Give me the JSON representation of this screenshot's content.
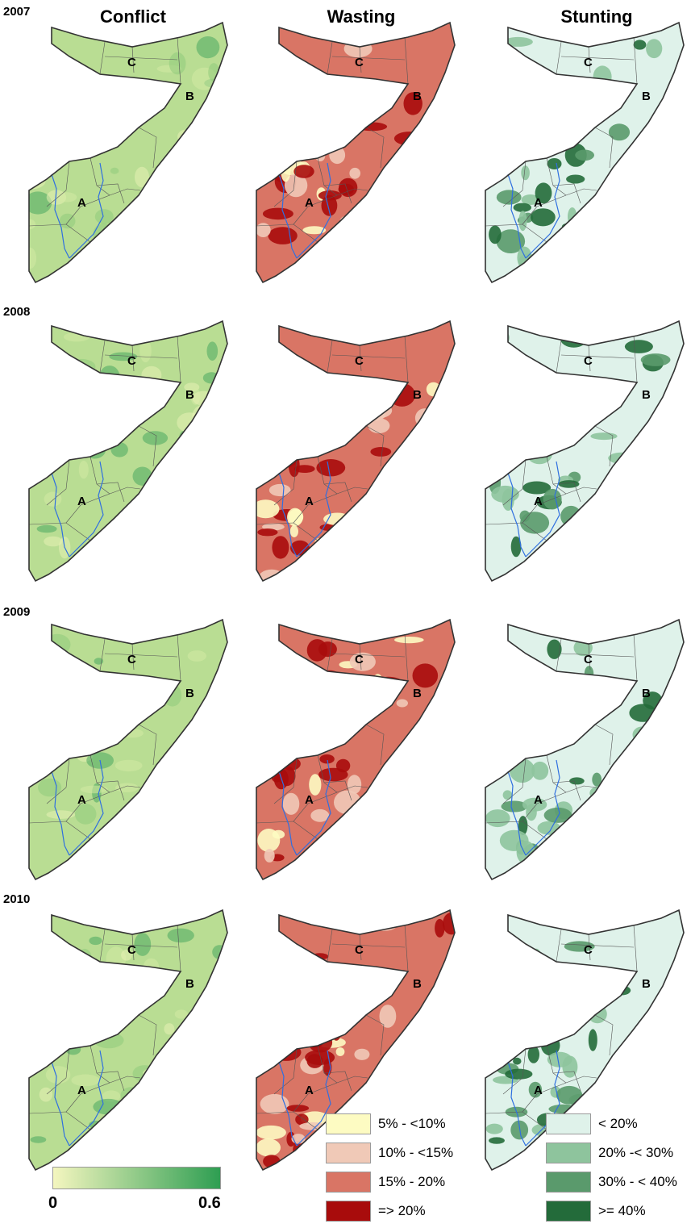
{
  "columns": [
    "Conflict",
    "Wasting",
    "Stunting"
  ],
  "years": [
    "2007",
    "2008",
    "2009",
    "2010"
  ],
  "region_labels": [
    "A",
    "B",
    "C"
  ],
  "colors": {
    "conflict_low": "#f4f6bf",
    "conflict_high": "#2e9e52",
    "wasting": [
      "#fdfbc2",
      "#f0c9b7",
      "#d97565",
      "#a80c0c"
    ],
    "stunting": [
      "#dff2ea",
      "#8ec49d",
      "#5a9a6c",
      "#236b3a"
    ],
    "river": "#2f6fe0",
    "border": "#333333"
  },
  "conflict_scale": {
    "min_label": "0",
    "max_label": "0.6",
    "min": 0,
    "max": 0.6
  },
  "wasting_legend": [
    "5% - <10%",
    "10% - <15%",
    "15% - 20%",
    "=> 20%"
  ],
  "stunting_legend": [
    "< 20%",
    "20% -< 30%",
    "30% - < 40%",
    ">= 40%"
  ]
}
